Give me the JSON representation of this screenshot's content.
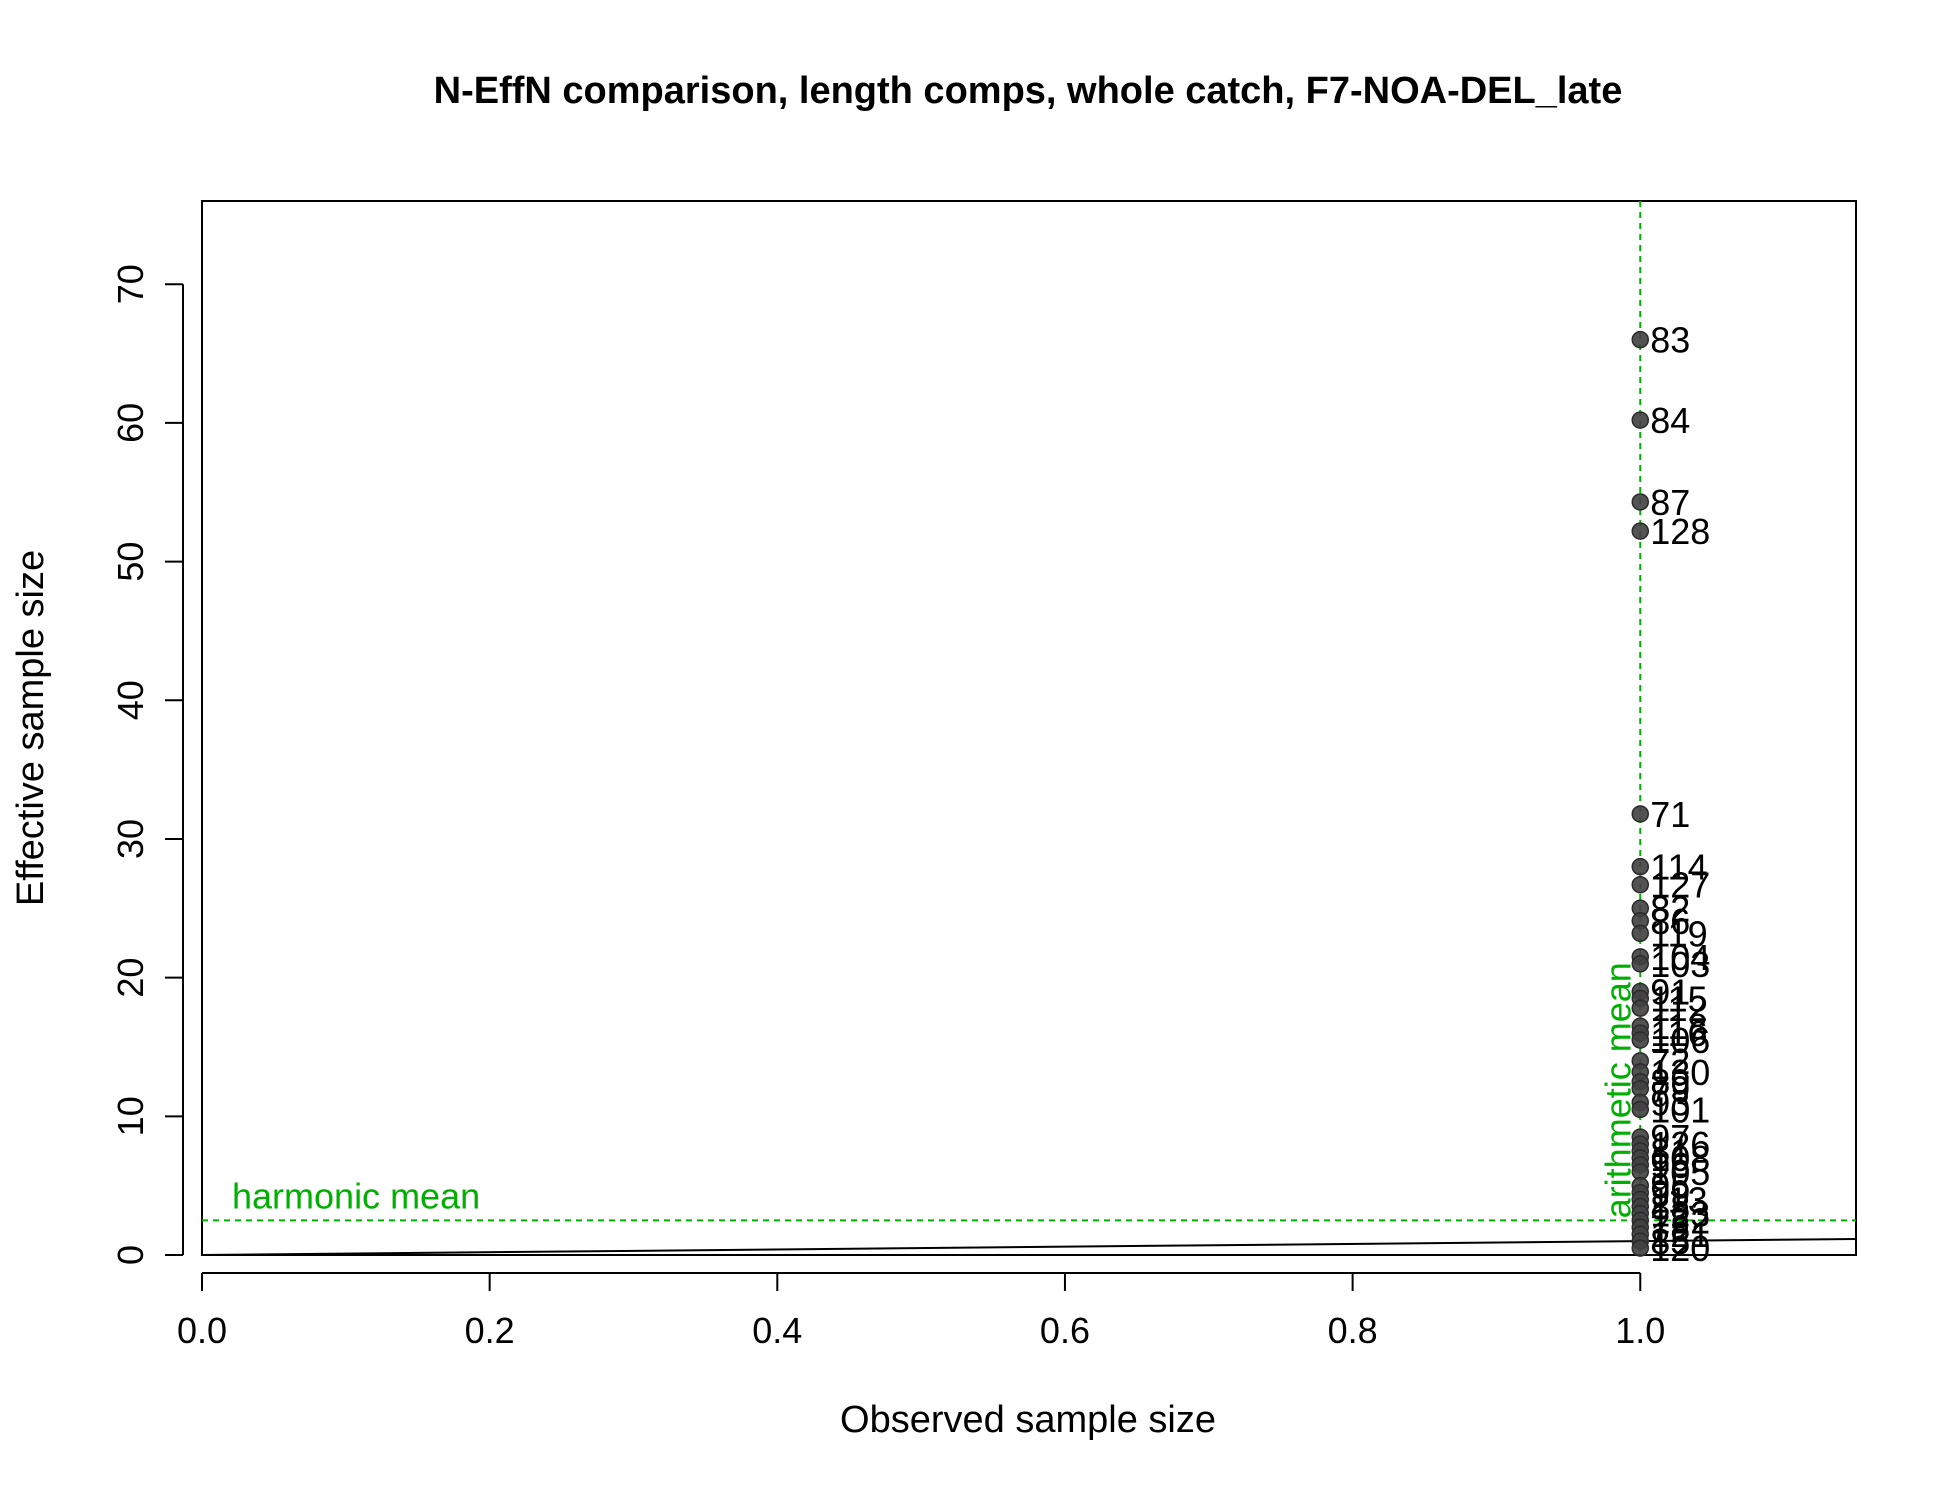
{
  "chart_data": {
    "type": "scatter",
    "title": "N-EffN comparison, length comps, whole catch, F7-NOA-DEL_late",
    "xlabel": "Observed sample size",
    "ylabel": "Effective sample size",
    "xlim": [
      0,
      1.15
    ],
    "ylim": [
      0,
      76
    ],
    "xticks": [
      "0.0",
      "0.2",
      "0.4",
      "0.6",
      "0.8",
      "1.0"
    ],
    "yticks": [
      "0",
      "10",
      "20",
      "30",
      "40",
      "50",
      "60",
      "70"
    ],
    "grid": false,
    "points": [
      {
        "x": 1.0,
        "y": 66.0,
        "label": "83"
      },
      {
        "x": 1.0,
        "y": 60.2,
        "label": "84"
      },
      {
        "x": 1.0,
        "y": 54.3,
        "label": "87"
      },
      {
        "x": 1.0,
        "y": 52.2,
        "label": "128"
      },
      {
        "x": 1.0,
        "y": 31.8,
        "label": "71"
      },
      {
        "x": 1.0,
        "y": 28.0,
        "label": "114"
      },
      {
        "x": 1.0,
        "y": 26.7,
        "label": "127"
      },
      {
        "x": 1.0,
        "y": 25.0,
        "label": "82"
      },
      {
        "x": 1.0,
        "y": 24.1,
        "label": "86"
      },
      {
        "x": 1.0,
        "y": 23.2,
        "label": "119"
      },
      {
        "x": 1.0,
        "y": 21.5,
        "label": "104"
      },
      {
        "x": 1.0,
        "y": 21.0,
        "label": "103"
      },
      {
        "x": 1.0,
        "y": 19.0,
        "label": "91"
      },
      {
        "x": 1.0,
        "y": 18.5,
        "label": "115"
      },
      {
        "x": 1.0,
        "y": 17.8,
        "label": "112"
      },
      {
        "x": 1.0,
        "y": 16.5,
        "label": "118"
      },
      {
        "x": 1.0,
        "y": 16.0,
        "label": "116"
      },
      {
        "x": 1.0,
        "y": 15.5,
        "label": "106"
      },
      {
        "x": 1.0,
        "y": 14.0,
        "label": "72"
      },
      {
        "x": 1.0,
        "y": 13.2,
        "label": "130"
      },
      {
        "x": 1.0,
        "y": 12.5,
        "label": "89"
      },
      {
        "x": 1.0,
        "y": 12.0,
        "label": "79"
      },
      {
        "x": 1.0,
        "y": 11.0,
        "label": "93"
      },
      {
        "x": 1.0,
        "y": 10.5,
        "label": "101"
      },
      {
        "x": 1.0,
        "y": 8.5,
        "label": "97"
      },
      {
        "x": 1.0,
        "y": 8.0,
        "label": "126"
      },
      {
        "x": 1.0,
        "y": 7.5,
        "label": "81"
      },
      {
        "x": 1.0,
        "y": 7.0,
        "label": "108"
      },
      {
        "x": 1.0,
        "y": 6.5,
        "label": "96"
      },
      {
        "x": 1.0,
        "y": 6.0,
        "label": "105"
      },
      {
        "x": 1.0,
        "y": 5.0,
        "label": "95"
      },
      {
        "x": 1.0,
        "y": 4.5,
        "label": "99"
      },
      {
        "x": 1.0,
        "y": 4.0,
        "label": "113"
      },
      {
        "x": 1.0,
        "y": 3.5,
        "label": "88"
      },
      {
        "x": 1.0,
        "y": 3.0,
        "label": "123"
      },
      {
        "x": 1.0,
        "y": 2.5,
        "label": "122"
      },
      {
        "x": 1.0,
        "y": 2.0,
        "label": "78"
      },
      {
        "x": 1.0,
        "y": 1.5,
        "label": "121"
      },
      {
        "x": 1.0,
        "y": 1.0,
        "label": "85"
      },
      {
        "x": 1.0,
        "y": 0.5,
        "label": "120"
      }
    ],
    "reference_lines": [
      {
        "orientation": "horizontal",
        "value": 2.5,
        "label": "harmonic mean",
        "color": "#00b000",
        "style": "dashed"
      },
      {
        "orientation": "vertical",
        "value": 1.0,
        "label": "arithmetic mean",
        "color": "#00b000",
        "style": "dashed"
      },
      {
        "orientation": "identity",
        "label": "",
        "color": "#000000",
        "style": "solid"
      }
    ],
    "point_color": "#404040"
  }
}
